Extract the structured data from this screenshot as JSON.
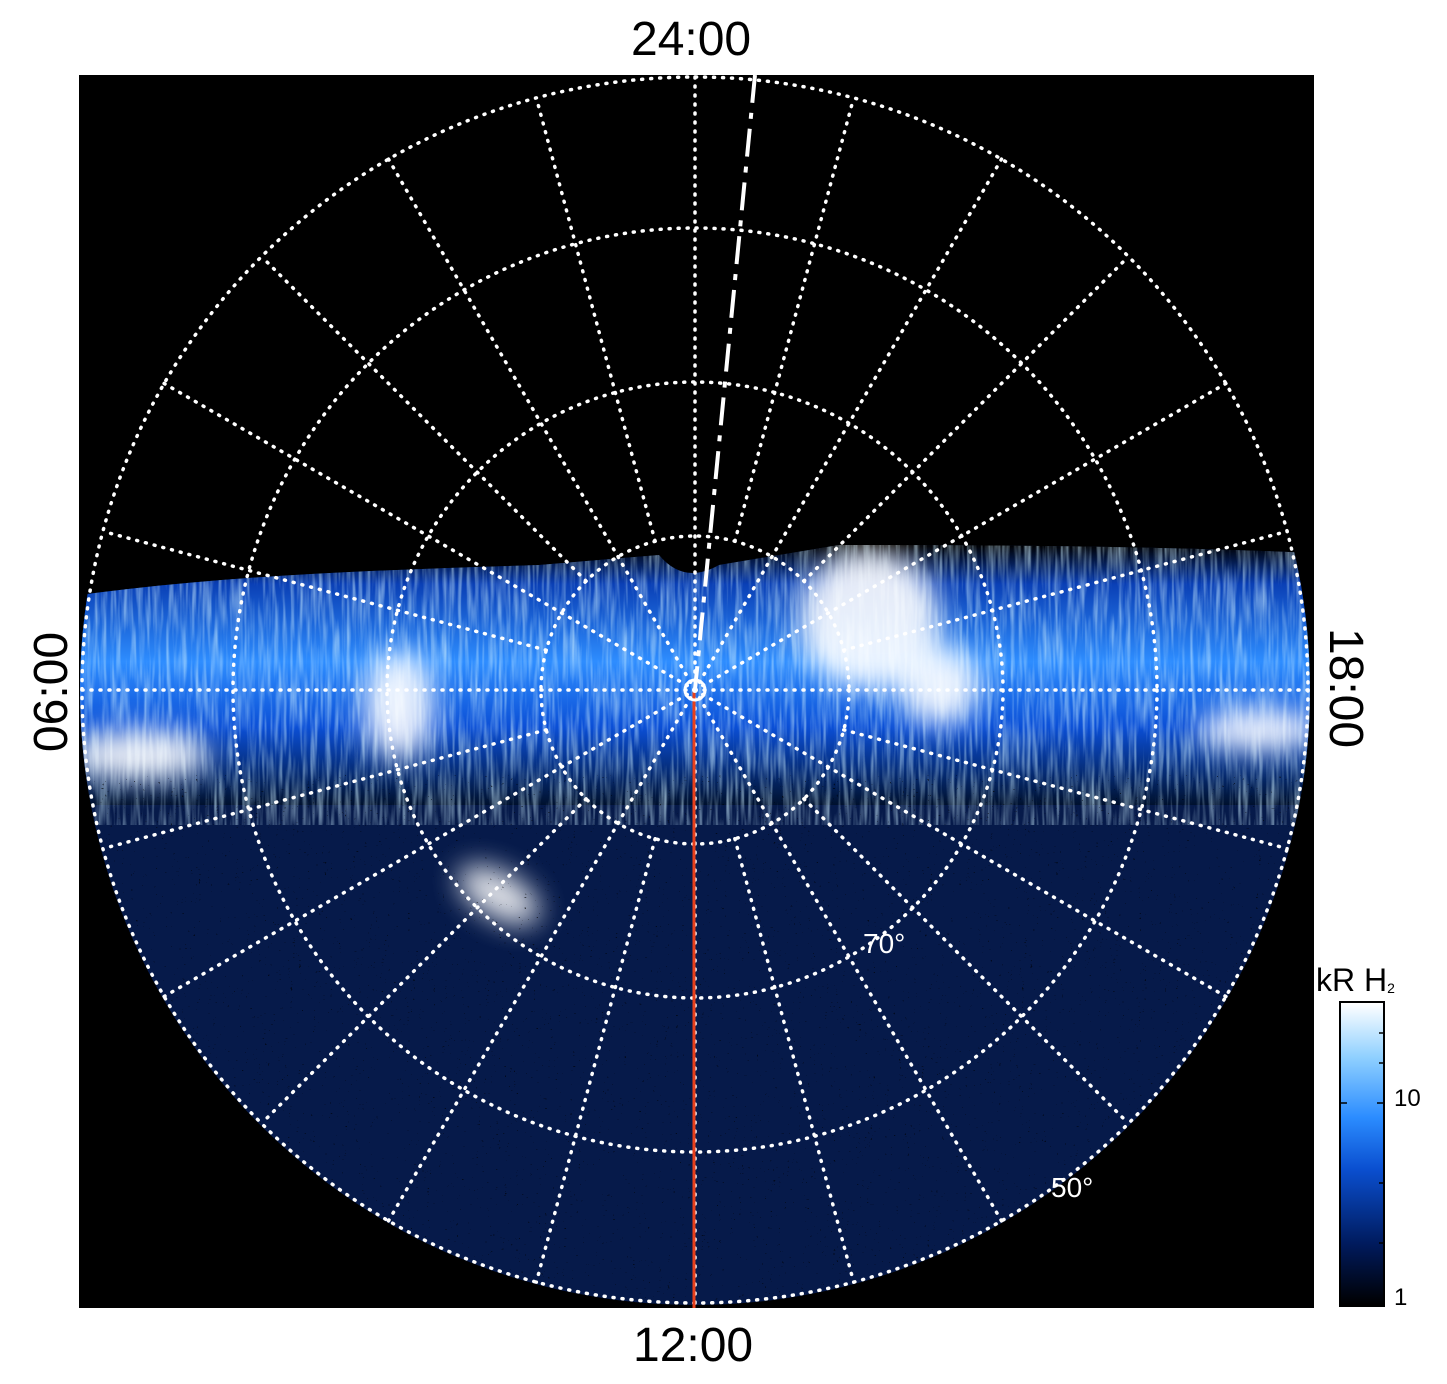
{
  "local_time_labels": {
    "top": "24:00",
    "bottom": "12:00",
    "left": "06:00",
    "right": "18:00"
  },
  "latitude_labels": [
    "70°",
    "50°"
  ],
  "colorbar": {
    "title": "kR H",
    "title_subscript": "2",
    "tick_labels": [
      "10",
      "1"
    ],
    "scale": "log",
    "colors": [
      "#000000",
      "#001a5c",
      "#0a4fd0",
      "#2b8cff",
      "#8fd0ff",
      "#ffffff"
    ]
  },
  "colors": {
    "background": "#000000",
    "grid": "#ffffff",
    "meridian_line": "#e8401c"
  }
}
